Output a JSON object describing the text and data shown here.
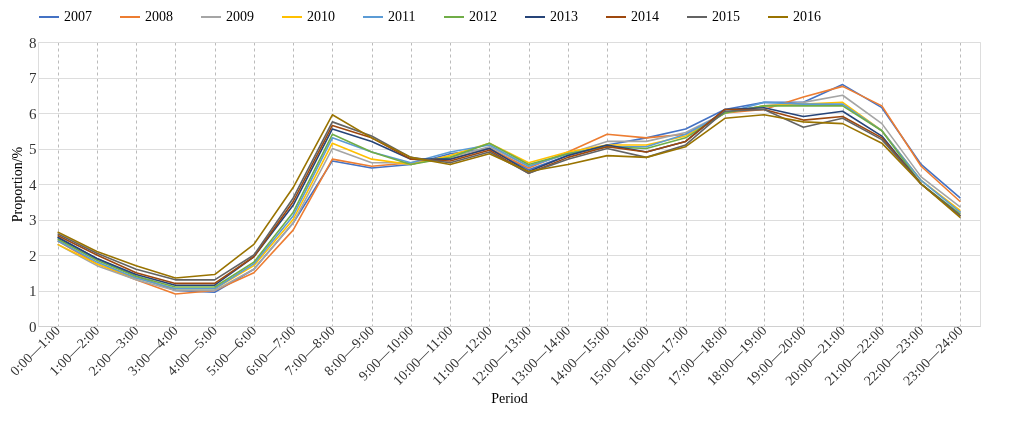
{
  "chart_data": {
    "type": "line",
    "xlabel": "Period",
    "ylabel": "Proportion/%",
    "categories": [
      "0:00—1:00",
      "1:00—2:00",
      "2:00—3:00",
      "3:00—4:00",
      "4:00—5:00",
      "5:00—6:00",
      "6:00—7:00",
      "7:00—8:00",
      "8:00—9:00",
      "9:00—10:00",
      "10:00—11:00",
      "11:00—12:00",
      "12:00—13:00",
      "13:00—14:00",
      "14:00—15:00",
      "15:00—16:00",
      "16:00—17:00",
      "17:00—18:00",
      "18:00—19:00",
      "19:00—20:00",
      "20:00—21:00",
      "21:00—22:00",
      "22:00—23:00",
      "23:00—24:00"
    ],
    "ylim": [
      0,
      8
    ],
    "yticks": [
      0,
      1,
      2,
      3,
      4,
      5,
      6,
      7,
      8
    ],
    "grid": true,
    "legend": "top",
    "marker": "none",
    "line_style": "solid",
    "series": [
      {
        "name": "2007",
        "color": "#4472c4",
        "values": [
          2.5,
          1.9,
          1.4,
          1.0,
          0.95,
          1.6,
          2.9,
          4.65,
          4.45,
          4.55,
          4.85,
          5.0,
          4.4,
          4.8,
          5.1,
          5.3,
          5.55,
          6.1,
          6.3,
          6.3,
          6.8,
          6.15,
          4.55,
          3.6
        ]
      },
      {
        "name": "2008",
        "color": "#ed7d31",
        "values": [
          2.4,
          1.75,
          1.3,
          0.9,
          1.0,
          1.5,
          2.7,
          4.7,
          4.5,
          4.6,
          4.7,
          5.0,
          4.45,
          4.9,
          5.4,
          5.3,
          5.4,
          6.0,
          6.1,
          6.45,
          6.75,
          6.2,
          4.5,
          3.5
        ]
      },
      {
        "name": "2009",
        "color": "#a5a5a5",
        "values": [
          2.3,
          1.7,
          1.3,
          1.0,
          1.0,
          1.6,
          2.9,
          5.0,
          4.6,
          4.6,
          4.75,
          5.05,
          4.5,
          4.85,
          5.2,
          5.2,
          5.45,
          6.0,
          6.2,
          6.3,
          6.5,
          5.7,
          4.2,
          3.35
        ]
      },
      {
        "name": "2010",
        "color": "#ffc000",
        "values": [
          2.3,
          1.75,
          1.35,
          1.05,
          1.05,
          1.7,
          3.0,
          5.15,
          4.7,
          4.55,
          4.8,
          5.15,
          4.6,
          4.9,
          5.1,
          5.1,
          5.35,
          6.0,
          6.2,
          6.25,
          6.3,
          5.5,
          4.1,
          3.25
        ]
      },
      {
        "name": "2011",
        "color": "#5b9bd5",
        "values": [
          2.4,
          1.8,
          1.35,
          1.05,
          1.05,
          1.75,
          3.1,
          5.3,
          4.9,
          4.6,
          4.9,
          5.1,
          4.5,
          4.85,
          5.05,
          5.05,
          5.4,
          6.0,
          6.3,
          6.25,
          6.25,
          5.5,
          4.1,
          3.2
        ]
      },
      {
        "name": "2012",
        "color": "#70ad47",
        "values": [
          2.45,
          1.85,
          1.4,
          1.1,
          1.1,
          1.8,
          3.2,
          5.4,
          4.9,
          4.55,
          4.75,
          5.15,
          4.55,
          4.85,
          5.05,
          5.0,
          5.3,
          6.0,
          6.2,
          6.2,
          6.2,
          5.5,
          4.0,
          3.15
        ]
      },
      {
        "name": "2013",
        "color": "#264478",
        "values": [
          2.5,
          1.9,
          1.45,
          1.15,
          1.15,
          1.95,
          3.4,
          5.55,
          5.2,
          4.7,
          4.7,
          5.0,
          4.35,
          4.8,
          5.1,
          4.9,
          5.2,
          6.1,
          6.15,
          5.9,
          6.05,
          5.35,
          4.0,
          3.1
        ]
      },
      {
        "name": "2014",
        "color": "#9e480e",
        "values": [
          2.55,
          2.0,
          1.5,
          1.2,
          1.2,
          1.95,
          3.5,
          5.65,
          5.3,
          4.7,
          4.65,
          4.95,
          4.3,
          4.75,
          5.05,
          4.9,
          5.2,
          6.1,
          6.1,
          5.8,
          5.9,
          5.3,
          4.0,
          3.1
        ]
      },
      {
        "name": "2015",
        "color": "#636363",
        "values": [
          2.6,
          2.05,
          1.6,
          1.3,
          1.3,
          2.0,
          3.6,
          5.75,
          5.35,
          4.75,
          4.6,
          4.9,
          4.3,
          4.7,
          5.0,
          4.75,
          5.1,
          6.05,
          6.1,
          5.6,
          5.85,
          5.25,
          4.0,
          3.1
        ]
      },
      {
        "name": "2016",
        "color": "#997300",
        "values": [
          2.65,
          2.1,
          1.7,
          1.35,
          1.45,
          2.3,
          3.9,
          5.95,
          5.3,
          4.75,
          4.55,
          4.85,
          4.35,
          4.55,
          4.8,
          4.75,
          5.05,
          5.85,
          5.95,
          5.75,
          5.7,
          5.15,
          4.0,
          3.05
        ]
      }
    ]
  }
}
